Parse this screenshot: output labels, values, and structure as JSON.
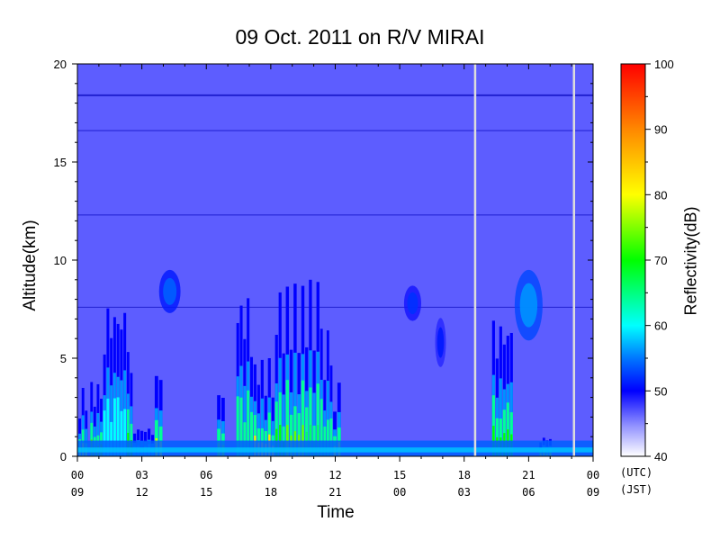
{
  "chart_data": {
    "type": "heatmap",
    "title": "09 Oct. 2011  on R/V MIRAI",
    "xlabel": "Time",
    "ylabel": "Altitude(km)",
    "colorbar_label": "Reflectivity(dB)",
    "x_range_hours": [
      0,
      24
    ],
    "ylim": [
      0,
      20
    ],
    "color_range": [
      40,
      100
    ],
    "y_ticks": [
      "0",
      "5",
      "10",
      "15",
      "20"
    ],
    "y_tick_values": [
      0,
      5,
      10,
      15,
      20
    ],
    "x_ticks_utc": [
      "00",
      "03",
      "06",
      "09",
      "12",
      "15",
      "18",
      "21",
      "00"
    ],
    "x_ticks_jst": [
      "09",
      "12",
      "15",
      "18",
      "21",
      "00",
      "03",
      "06",
      "09"
    ],
    "x_tick_hours": [
      0,
      3,
      6,
      9,
      12,
      15,
      18,
      21,
      24
    ],
    "utc_note": "(UTC)",
    "jst_note": "(JST)",
    "colorbar_ticks": [
      "40",
      "50",
      "60",
      "70",
      "80",
      "90",
      "100"
    ],
    "colorbar_tick_values": [
      40,
      50,
      60,
      70,
      80,
      90,
      100
    ],
    "background_reflectivity": 45,
    "data_gaps_hours": [
      18.5,
      23.1
    ],
    "horizontal_artifacts_km": [
      18.4,
      16.6,
      12.3,
      7.6
    ],
    "surface_layer": {
      "top_km": 0.8,
      "reflectivity": 54
    },
    "cloud_columns": [
      {
        "start_h": 0.05,
        "end_h": 0.5,
        "top_km": 3.5,
        "peak_db": 78
      },
      {
        "start_h": 0.6,
        "end_h": 1.2,
        "top_km": 3.8,
        "peak_db": 72
      },
      {
        "start_h": 1.2,
        "end_h": 2.3,
        "top_km": 7.8,
        "peak_db": 60
      },
      {
        "start_h": 2.3,
        "end_h": 2.6,
        "top_km": 5.5,
        "peak_db": 70
      },
      {
        "start_h": 2.6,
        "end_h": 3.6,
        "top_km": 1.5,
        "peak_db": 58
      },
      {
        "start_h": 3.6,
        "end_h": 4.0,
        "top_km": 4.5,
        "peak_db": 78
      },
      {
        "start_h": 6.5,
        "end_h": 6.9,
        "top_km": 3.6,
        "peak_db": 74
      },
      {
        "start_h": 7.4,
        "end_h": 8.2,
        "top_km": 8.2,
        "peak_db": 64
      },
      {
        "start_h": 8.2,
        "end_h": 9.2,
        "top_km": 5.0,
        "peak_db": 82
      },
      {
        "start_h": 9.2,
        "end_h": 9.7,
        "top_km": 8.5,
        "peak_db": 70
      },
      {
        "start_h": 9.7,
        "end_h": 10.6,
        "top_km": 8.8,
        "peak_db": 74
      },
      {
        "start_h": 10.6,
        "end_h": 11.3,
        "top_km": 9.0,
        "peak_db": 66
      },
      {
        "start_h": 11.3,
        "end_h": 11.9,
        "top_km": 6.5,
        "peak_db": 64
      },
      {
        "start_h": 11.9,
        "end_h": 12.3,
        "top_km": 3.8,
        "peak_db": 78
      },
      {
        "start_h": 19.3,
        "end_h": 20.3,
        "top_km": 7.0,
        "peak_db": 70
      },
      {
        "start_h": 21.5,
        "end_h": 22.1,
        "top_km": 1.0,
        "peak_db": 76
      }
    ],
    "anvil_clouds": [
      {
        "center_h": 4.3,
        "center_km": 8.4,
        "width_h": 1.0,
        "height_km": 2.2,
        "peak_db": 54
      },
      {
        "center_h": 15.6,
        "center_km": 7.8,
        "width_h": 0.8,
        "height_km": 1.8,
        "peak_db": 52
      },
      {
        "center_h": 16.9,
        "center_km": 5.8,
        "width_h": 0.5,
        "height_km": 2.5,
        "peak_db": 51
      },
      {
        "center_h": 21.0,
        "center_km": 7.7,
        "width_h": 1.3,
        "height_km": 3.6,
        "peak_db": 56
      }
    ]
  }
}
